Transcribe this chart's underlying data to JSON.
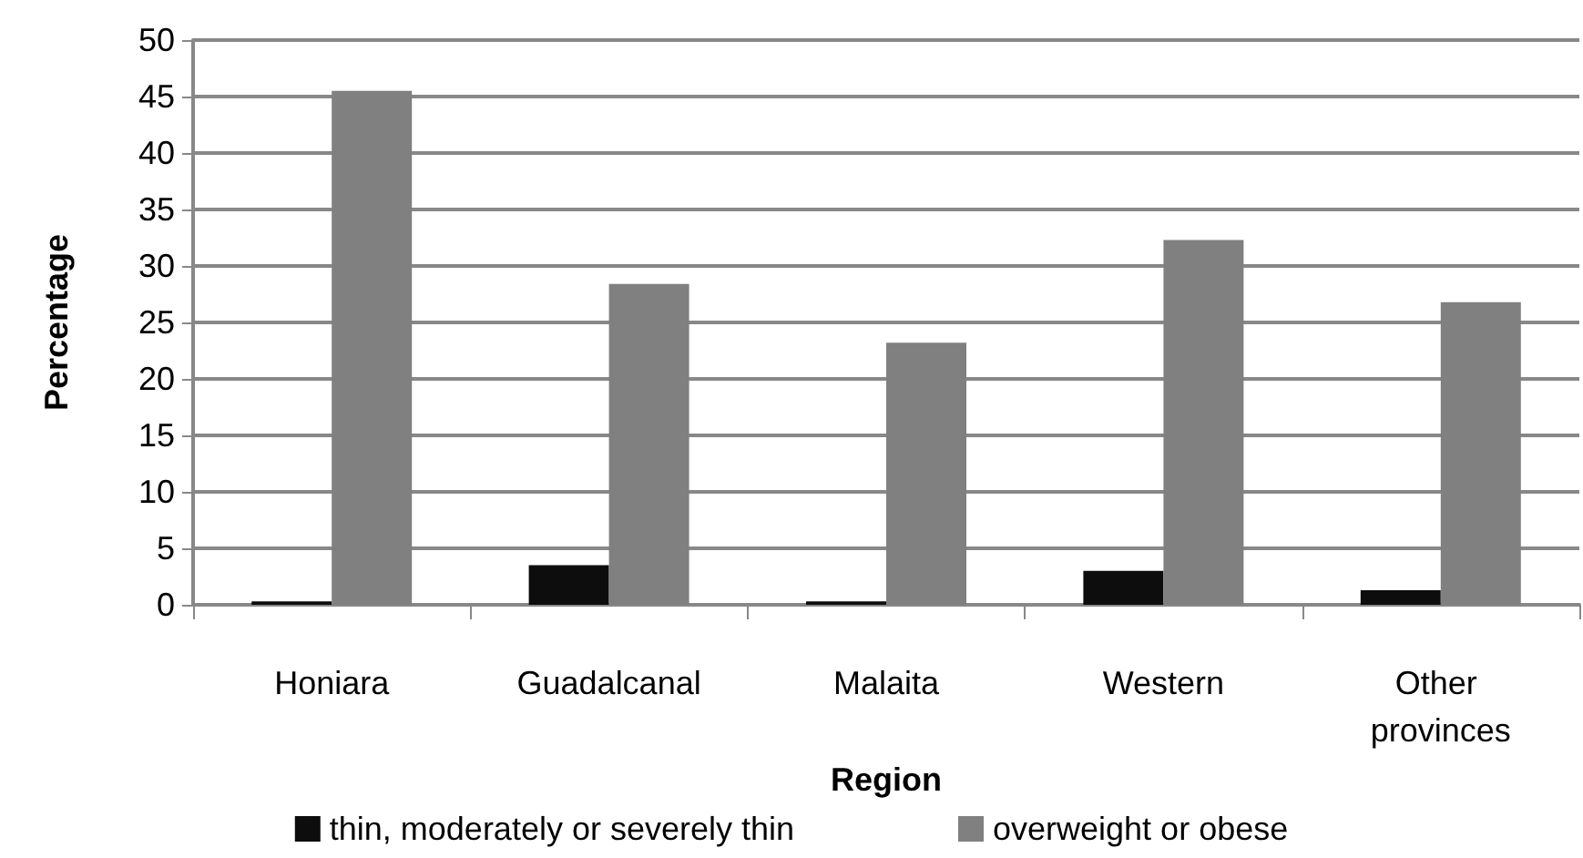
{
  "chart_data": {
    "type": "bar",
    "xlabel": "Region",
    "ylabel": "Percentage",
    "categories": [
      "Honiara",
      "Guadalcanal",
      "Malaita",
      "Western",
      "Other provinces"
    ],
    "series": [
      {
        "name": "thin, moderately or severely thin",
        "color": "#0d0d0d",
        "values": [
          0.3,
          3.5,
          0.3,
          3.0,
          1.3
        ]
      },
      {
        "name": "overweight or obese",
        "color": "#808080",
        "values": [
          45.5,
          28.4,
          23.2,
          32.3,
          26.8
        ]
      }
    ],
    "ylim": [
      0,
      50
    ],
    "yticks": [
      0,
      5,
      10,
      15,
      20,
      25,
      30,
      35,
      40,
      45,
      50
    ],
    "grid": "y",
    "legend": "bottom"
  }
}
